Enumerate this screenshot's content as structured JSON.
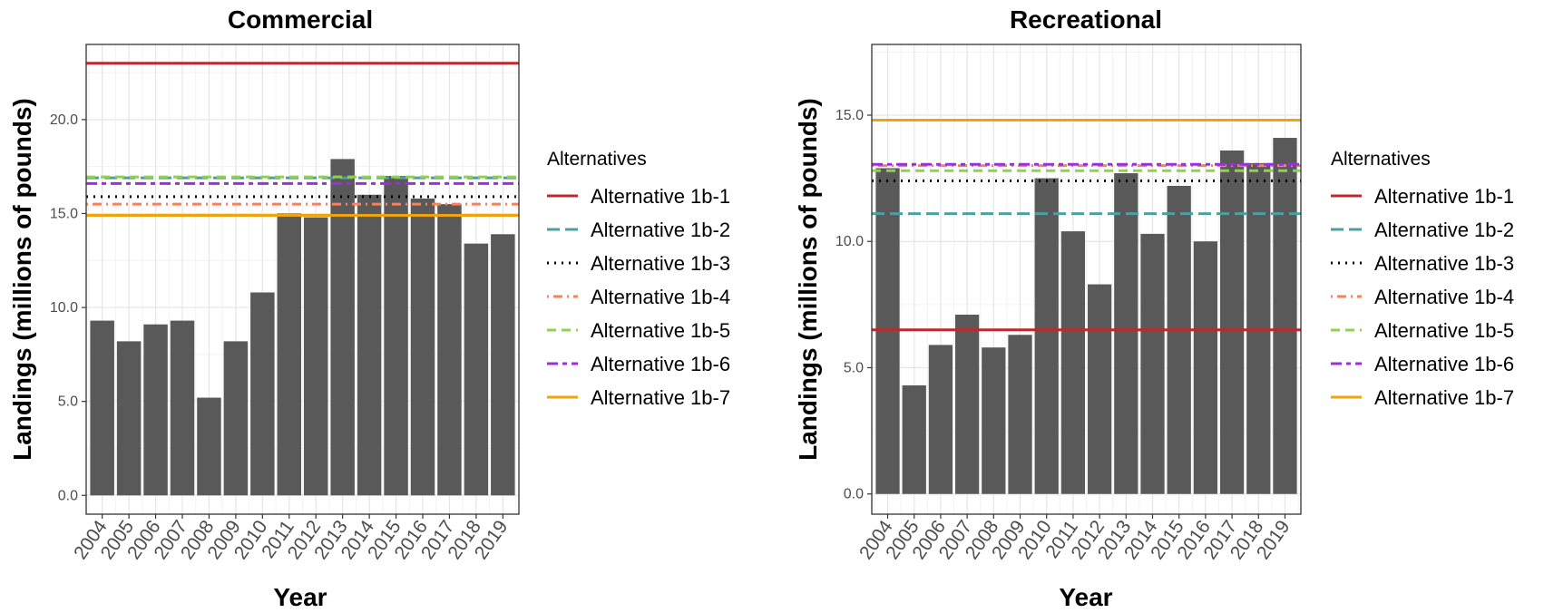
{
  "chart_data": [
    {
      "type": "bar",
      "title": "Commercial",
      "xlabel": "Year",
      "ylabel": "Landings (millions of pounds)",
      "ylim": [
        -1.0,
        24.0
      ],
      "yticks": [
        "0.0",
        "5.0",
        "10.0",
        "15.0",
        "20.0"
      ],
      "grid": true,
      "legend_position": "right",
      "categories": [
        "2004",
        "2005",
        "2006",
        "2007",
        "2008",
        "2009",
        "2010",
        "2011",
        "2012",
        "2013",
        "2014",
        "2015",
        "2016",
        "2017",
        "2018",
        "2019"
      ],
      "values": [
        9.3,
        8.2,
        9.1,
        9.3,
        5.2,
        8.2,
        10.8,
        15.0,
        14.8,
        17.9,
        16.0,
        17.0,
        15.8,
        15.5,
        13.4,
        13.9
      ],
      "bar_color": "#595959",
      "legend_title": "Alternatives",
      "series": [
        {
          "name": "Alternative 1b-1",
          "value": 23.0,
          "color": "#c1272d",
          "dash": "solid"
        },
        {
          "name": "Alternative 1b-2",
          "value": 16.9,
          "color": "#4ca0a0",
          "dash": "longdash"
        },
        {
          "name": "Alternative 1b-3",
          "value": 15.9,
          "color": "#000000",
          "dash": "dotted"
        },
        {
          "name": "Alternative 1b-4",
          "value": 15.5,
          "color": "#f4825f",
          "dash": "dotdash"
        },
        {
          "name": "Alternative 1b-5",
          "value": 16.95,
          "color": "#92d050",
          "dash": "dashed"
        },
        {
          "name": "Alternative 1b-6",
          "value": 16.6,
          "color": "#9b30d9",
          "dash": "twodash"
        },
        {
          "name": "Alternative 1b-7",
          "value": 14.9,
          "color": "#f0a30a",
          "dash": "solid"
        }
      ]
    },
    {
      "type": "bar",
      "title": "Recreational",
      "xlabel": "Year",
      "ylabel": "Landings (millions of pounds)",
      "ylim": [
        -0.8,
        17.8
      ],
      "yticks": [
        "0.0",
        "5.0",
        "10.0",
        "15.0"
      ],
      "grid": true,
      "legend_position": "right",
      "categories": [
        "2004",
        "2005",
        "2006",
        "2007",
        "2008",
        "2009",
        "2010",
        "2011",
        "2012",
        "2013",
        "2014",
        "2015",
        "2016",
        "2017",
        "2018",
        "2019"
      ],
      "values": [
        12.9,
        4.3,
        5.9,
        7.1,
        5.8,
        6.3,
        12.5,
        10.4,
        8.3,
        12.7,
        10.3,
        12.2,
        10.0,
        13.6,
        13.1,
        14.1
      ],
      "bar_color": "#595959",
      "legend_title": "Alternatives",
      "series": [
        {
          "name": "Alternative 1b-1",
          "value": 6.5,
          "color": "#c1272d",
          "dash": "solid"
        },
        {
          "name": "Alternative 1b-2",
          "value": 11.1,
          "color": "#4ca0a0",
          "dash": "longdash"
        },
        {
          "name": "Alternative 1b-3",
          "value": 12.4,
          "color": "#000000",
          "dash": "dotted"
        },
        {
          "name": "Alternative 1b-4",
          "value": 13.0,
          "color": "#f4825f",
          "dash": "dotdash"
        },
        {
          "name": "Alternative 1b-5",
          "value": 12.8,
          "color": "#92d050",
          "dash": "dashed"
        },
        {
          "name": "Alternative 1b-6",
          "value": 13.05,
          "color": "#9b30d9",
          "dash": "twodash"
        },
        {
          "name": "Alternative 1b-7",
          "value": 14.8,
          "color": "#f0a30a",
          "dash": "solid"
        }
      ]
    }
  ]
}
